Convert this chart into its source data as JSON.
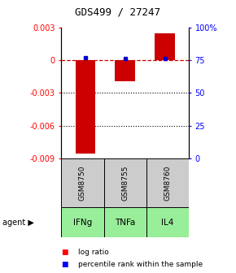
{
  "title": "GDS499 / 27247",
  "samples": [
    "GSM8750",
    "GSM8755",
    "GSM8760"
  ],
  "agents": [
    "IFNg",
    "TNFa",
    "IL4"
  ],
  "log_ratios": [
    -0.00855,
    -0.00195,
    0.00245
  ],
  "percentile_ranks": [
    77,
    76,
    76
  ],
  "ylim_left": [
    -0.009,
    0.003
  ],
  "ylim_right": [
    0,
    100
  ],
  "yticks_left": [
    0.003,
    0,
    -0.003,
    -0.006,
    -0.009
  ],
  "yticks_right": [
    100,
    75,
    50,
    25,
    0
  ],
  "ytick_labels_left": [
    "0.003",
    "0",
    "-0.003",
    "-0.006",
    "-0.009"
  ],
  "ytick_labels_right": [
    "100%",
    "75",
    "50",
    "25",
    "0"
  ],
  "bar_color": "#cc0000",
  "percentile_color": "#0000cc",
  "zero_line_color": "#cc0000",
  "grid_color": "#000000",
  "sample_bg_color": "#cccccc",
  "agent_row_color": "#99ee99",
  "bar_width": 0.5
}
